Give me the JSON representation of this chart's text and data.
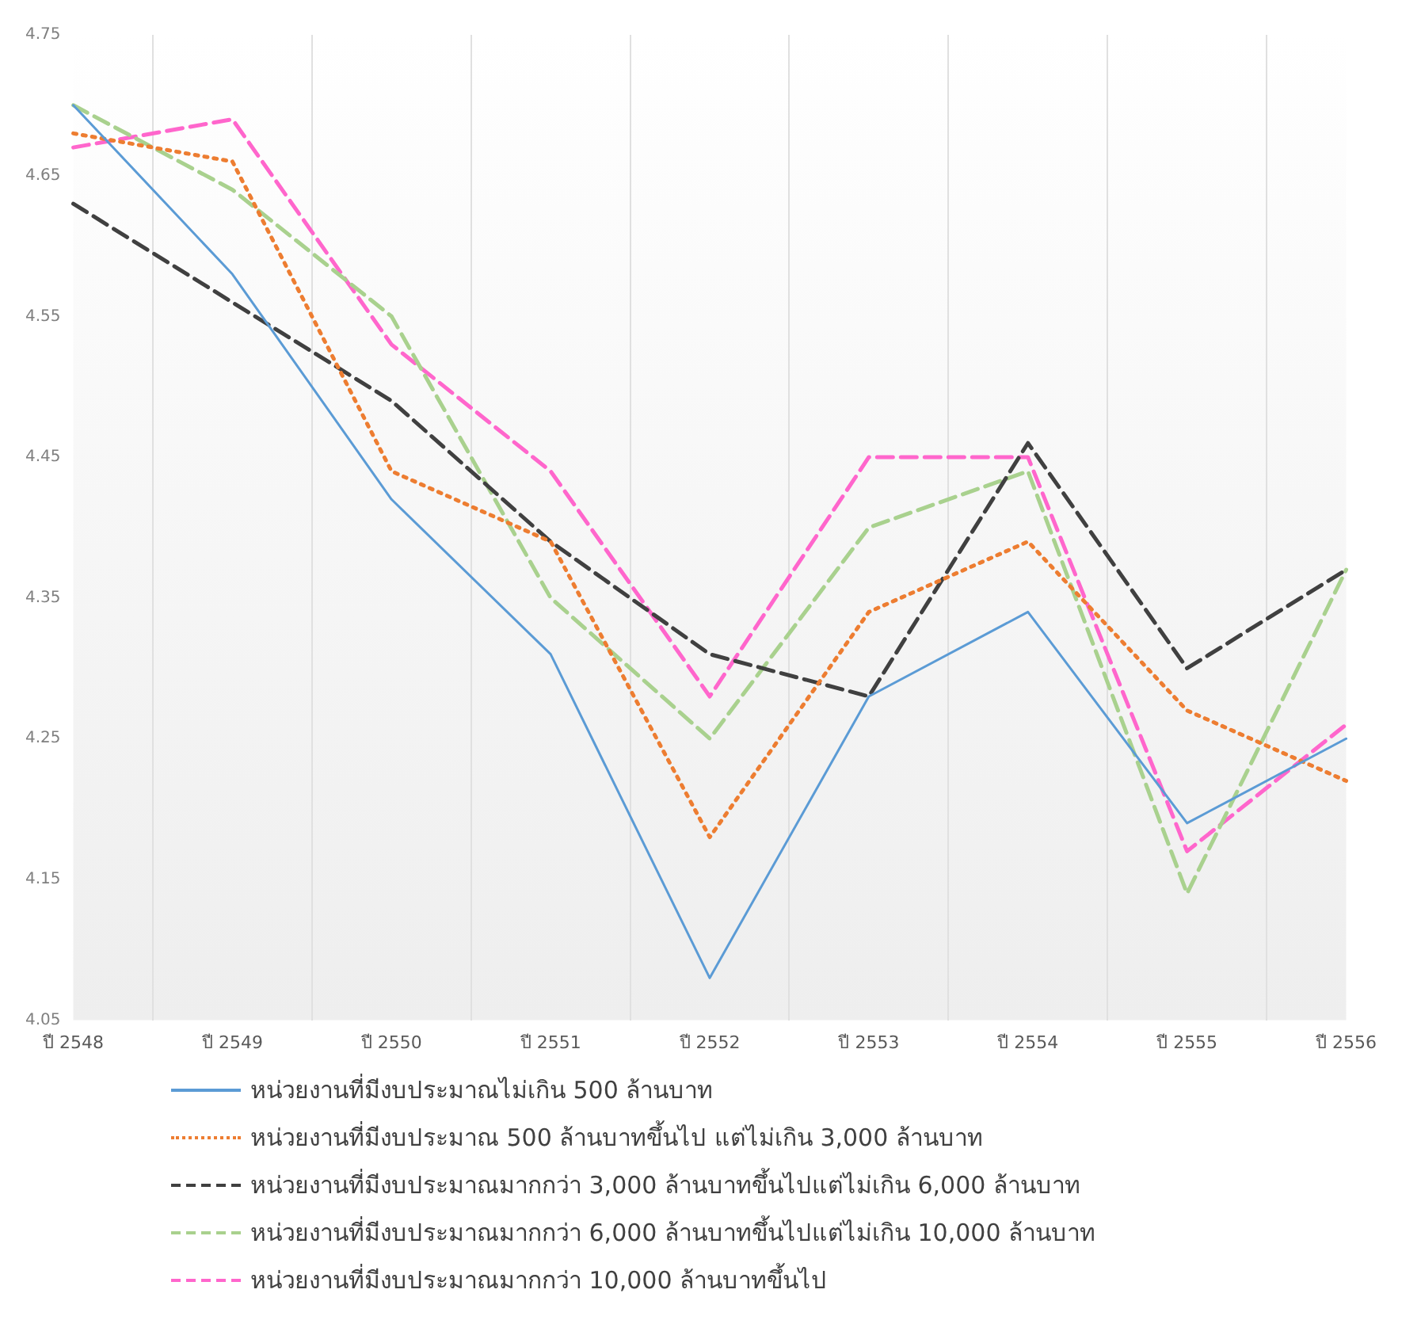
{
  "chart_data": {
    "type": "line",
    "categories": [
      "ปี 2548",
      "ปี 2549",
      "ปี 2550",
      "ปี 2551",
      "ปี 2552",
      "ปี 2553",
      "ปี 2554",
      "ปี 2555",
      "ปี 2556"
    ],
    "ylim": [
      4.05,
      4.75
    ],
    "yticks": [
      4.05,
      4.15,
      4.25,
      4.35,
      4.45,
      4.55,
      4.65,
      4.75
    ],
    "grid": "x",
    "legend": "bottom",
    "marker": "none",
    "series": [
      {
        "name": "หน่วยงานที่มีงบประมาณไม่เกิน 500 ล้านบาท",
        "color": "#5b9bd5",
        "line_style": "solid",
        "values": [
          4.7,
          4.58,
          4.42,
          4.31,
          4.08,
          4.28,
          4.34,
          4.19,
          4.25
        ]
      },
      {
        "name": "หน่วยงานที่มีงบประมาณ 500 ล้านบาทขึ้นไป แต่ไม่เกิน 3,000 ล้านบาท",
        "color": "#ed7d31",
        "line_style": "dotted",
        "values": [
          4.68,
          4.66,
          4.44,
          4.39,
          4.18,
          4.34,
          4.39,
          4.27,
          4.22
        ]
      },
      {
        "name": "หน่วยงานที่มีงบประมาณมากกว่า 3,000 ล้านบาทขึ้นไปแต่ไม่เกิน 6,000 ล้านบาท",
        "color": "#404040",
        "line_style": "dashed",
        "values": [
          4.63,
          4.56,
          4.49,
          4.39,
          4.31,
          4.28,
          4.46,
          4.3,
          4.37
        ]
      },
      {
        "name": "หน่วยงานที่มีงบประมาณมากกว่า 6,000 ล้านบาทขึ้นไปแต่ไม่เกิน 10,000 ล้านบาท",
        "color": "#a9d18e",
        "line_style": "dashed",
        "values": [
          4.7,
          4.64,
          4.55,
          4.35,
          4.25,
          4.4,
          4.44,
          4.14,
          4.37
        ]
      },
      {
        "name": "หน่วยงานที่มีงบประมาณมากกว่า 10,000 ล้านบาทขึ้นไป",
        "color": "#ff66cc",
        "line_style": "dashed",
        "values": [
          4.67,
          4.69,
          4.53,
          4.44,
          4.28,
          4.45,
          4.45,
          4.17,
          4.26
        ]
      }
    ]
  }
}
